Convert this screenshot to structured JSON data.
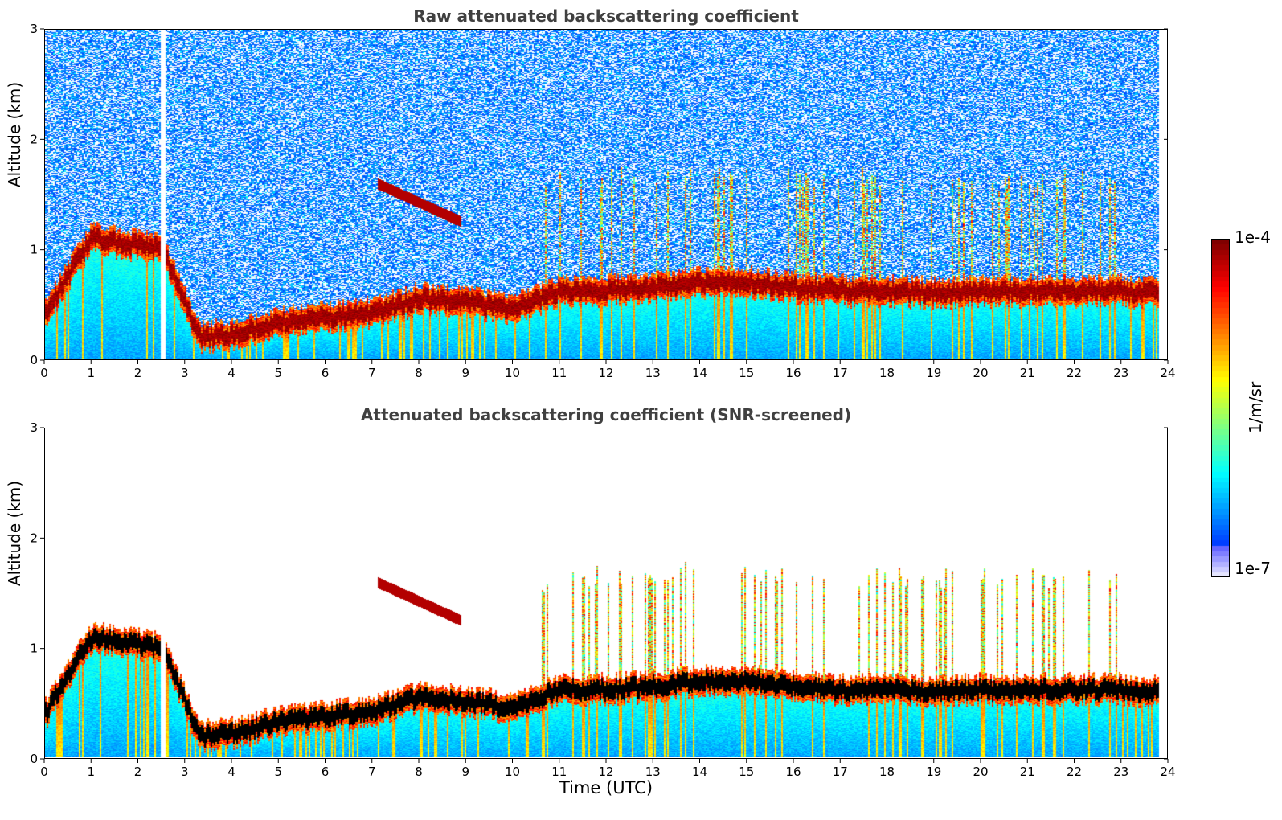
{
  "chart_data": [
    {
      "type": "heatmap",
      "title": "Raw attenuated backscattering coefficient",
      "xlabel": "",
      "ylabel": "Altitude (km)",
      "xlim": [
        0,
        24
      ],
      "ylim": [
        0,
        3
      ],
      "xticks": [
        "0",
        "1",
        "2",
        "3",
        "4",
        "5",
        "6",
        "7",
        "8",
        "9",
        "10",
        "11",
        "12",
        "13",
        "14",
        "15",
        "16",
        "17",
        "18",
        "19",
        "20",
        "21",
        "22",
        "23",
        "24"
      ],
      "yticks": [
        "0",
        "1",
        "2",
        "3"
      ],
      "screened": false,
      "boundary_layer_top_km": [
        {
          "t": 0,
          "z": 0.4
        },
        {
          "t": 0.6,
          "z": 0.85
        },
        {
          "t": 1,
          "z": 1.1
        },
        {
          "t": 2.5,
          "z": 1.0
        },
        {
          "t": 3.3,
          "z": 0.2
        },
        {
          "t": 4,
          "z": 0.22
        },
        {
          "t": 5,
          "z": 0.33
        },
        {
          "t": 6,
          "z": 0.38
        },
        {
          "t": 7,
          "z": 0.42
        },
        {
          "t": 8,
          "z": 0.55
        },
        {
          "t": 9,
          "z": 0.52
        },
        {
          "t": 10,
          "z": 0.45
        },
        {
          "t": 11,
          "z": 0.62
        },
        {
          "t": 12,
          "z": 0.62
        },
        {
          "t": 13,
          "z": 0.65
        },
        {
          "t": 14,
          "z": 0.7
        },
        {
          "t": 15,
          "z": 0.7
        },
        {
          "t": 16,
          "z": 0.65
        },
        {
          "t": 17,
          "z": 0.62
        },
        {
          "t": 18,
          "z": 0.62
        },
        {
          "t": 19,
          "z": 0.6
        },
        {
          "t": 20,
          "z": 0.62
        },
        {
          "t": 21,
          "z": 0.62
        },
        {
          "t": 22,
          "z": 0.62
        },
        {
          "t": 23,
          "z": 0.62
        },
        {
          "t": 23.8,
          "z": 0.6
        }
      ],
      "cloud_layer": {
        "t_start": 7.1,
        "t_end": 8.9,
        "z_start_km": 1.6,
        "z_end_km": 1.25
      },
      "data_gaps_hours": [
        [
          2.45,
          2.58
        ],
        [
          23.82,
          24
        ]
      ]
    },
    {
      "type": "heatmap",
      "title": "Attenuated backscattering coefficient (SNR-screened)",
      "xlabel": "Time (UTC)",
      "ylabel": "Altitude (km)",
      "xlim": [
        0,
        24
      ],
      "ylim": [
        0,
        3
      ],
      "xticks": [
        "0",
        "1",
        "2",
        "3",
        "4",
        "5",
        "6",
        "7",
        "8",
        "9",
        "10",
        "11",
        "12",
        "13",
        "14",
        "15",
        "16",
        "17",
        "18",
        "19",
        "20",
        "21",
        "22",
        "23",
        "24"
      ],
      "yticks": [
        "0",
        "1",
        "2",
        "3"
      ],
      "screened": true,
      "boundary_layer_top_km": [
        {
          "t": 0,
          "z": 0.4
        },
        {
          "t": 0.6,
          "z": 0.85
        },
        {
          "t": 1,
          "z": 1.1
        },
        {
          "t": 2.5,
          "z": 1.0
        },
        {
          "t": 3.3,
          "z": 0.2
        },
        {
          "t": 4,
          "z": 0.22
        },
        {
          "t": 5,
          "z": 0.33
        },
        {
          "t": 6,
          "z": 0.38
        },
        {
          "t": 7,
          "z": 0.42
        },
        {
          "t": 8,
          "z": 0.55
        },
        {
          "t": 9,
          "z": 0.52
        },
        {
          "t": 10,
          "z": 0.45
        },
        {
          "t": 11,
          "z": 0.62
        },
        {
          "t": 12,
          "z": 0.62
        },
        {
          "t": 13,
          "z": 0.65
        },
        {
          "t": 14,
          "z": 0.7
        },
        {
          "t": 15,
          "z": 0.7
        },
        {
          "t": 16,
          "z": 0.65
        },
        {
          "t": 17,
          "z": 0.62
        },
        {
          "t": 18,
          "z": 0.62
        },
        {
          "t": 19,
          "z": 0.6
        },
        {
          "t": 20,
          "z": 0.62
        },
        {
          "t": 21,
          "z": 0.62
        },
        {
          "t": 22,
          "z": 0.62
        },
        {
          "t": 23,
          "z": 0.62
        },
        {
          "t": 23.8,
          "z": 0.6
        }
      ],
      "cloud_layer": {
        "t_start": 7.1,
        "t_end": 8.9,
        "z_start_km": 1.6,
        "z_end_km": 1.25
      },
      "data_gaps_hours": [
        [
          2.45,
          2.58
        ],
        [
          23.82,
          24
        ]
      ]
    }
  ],
  "colorbar": {
    "label": "1/m/sr",
    "max_label": "1e-4",
    "min_label": "1e-7",
    "scale": "log",
    "colormap": "jet"
  }
}
